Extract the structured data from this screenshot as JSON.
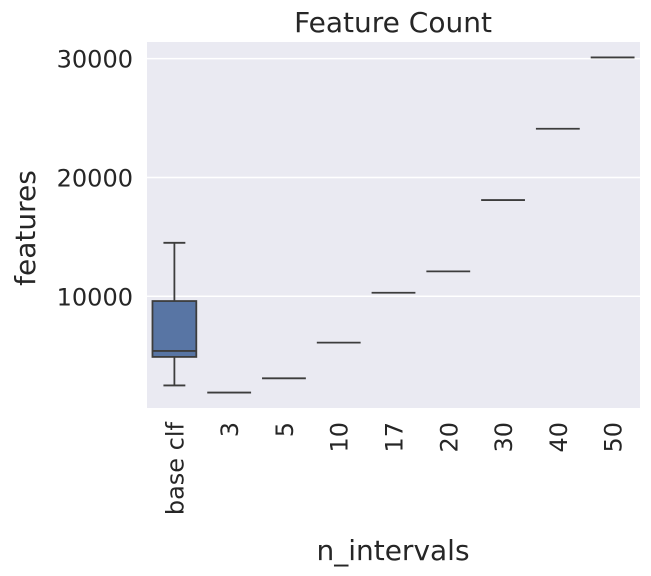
{
  "chart_data": {
    "type": "box",
    "title": "Feature Count",
    "xlabel": "n_intervals",
    "ylabel": "features",
    "ylim": [
      600,
      31400
    ],
    "yticks": [
      10000,
      20000,
      30000
    ],
    "grid": true,
    "background_color": "#eaeaf2",
    "box_color": "#5875a4",
    "line_color": "#3d3d3d",
    "categories": [
      "base clf",
      "3",
      "5",
      "10",
      "17",
      "20",
      "30",
      "40",
      "50"
    ],
    "boxes": [
      {
        "category": "base clf",
        "whisker_low": 2500,
        "q1": 4900,
        "median": 5400,
        "q3": 9600,
        "whisker_high": 14500
      },
      {
        "category": "3",
        "whisker_low": 1900,
        "q1": 1900,
        "median": 1900,
        "q3": 1900,
        "whisker_high": 1900
      },
      {
        "category": "5",
        "whisker_low": 3100,
        "q1": 3100,
        "median": 3100,
        "q3": 3100,
        "whisker_high": 3100
      },
      {
        "category": "10",
        "whisker_low": 6100,
        "q1": 6100,
        "median": 6100,
        "q3": 6100,
        "whisker_high": 6100
      },
      {
        "category": "17",
        "whisker_low": 10300,
        "q1": 10300,
        "median": 10300,
        "q3": 10300,
        "whisker_high": 10300
      },
      {
        "category": "20",
        "whisker_low": 12100,
        "q1": 12100,
        "median": 12100,
        "q3": 12100,
        "whisker_high": 12100
      },
      {
        "category": "30",
        "whisker_low": 18100,
        "q1": 18100,
        "median": 18100,
        "q3": 18100,
        "whisker_high": 18100
      },
      {
        "category": "40",
        "whisker_low": 24100,
        "q1": 24100,
        "median": 24100,
        "q3": 24100,
        "whisker_high": 24100
      },
      {
        "category": "50",
        "whisker_low": 30100,
        "q1": 30100,
        "median": 30100,
        "q3": 30100,
        "whisker_high": 30100
      }
    ]
  }
}
